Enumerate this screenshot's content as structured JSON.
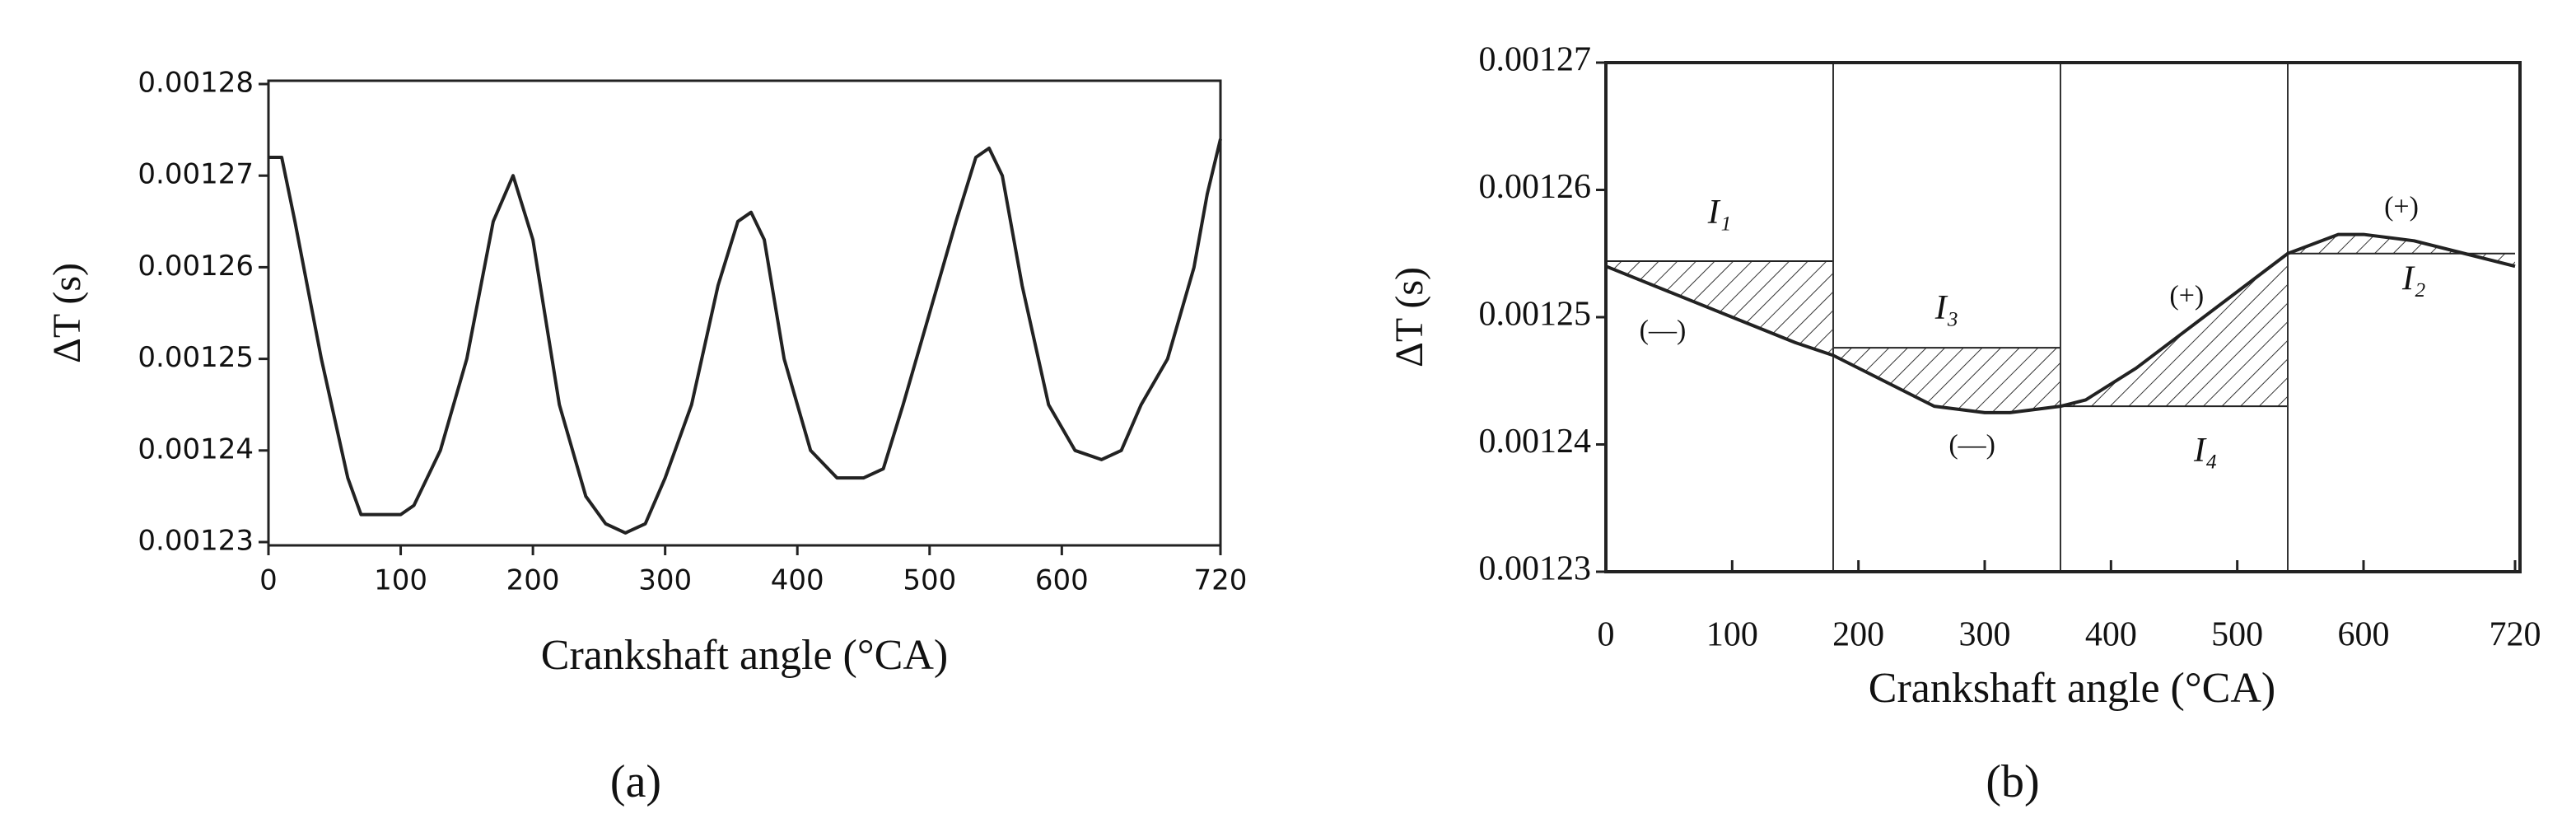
{
  "chart_data": [
    {
      "type": "line",
      "caption": "(a)",
      "x_label": "Crankshaft angle (°CA)",
      "y_label": "ΔT (s)",
      "xlim": [
        0,
        720
      ],
      "xticks": [
        0,
        100,
        200,
        300,
        400,
        500,
        600,
        720
      ],
      "ylim": [
        0.00123,
        0.00128
      ],
      "yticks": [
        0.00123,
        0.00124,
        0.00125,
        0.00126,
        0.00127,
        0.00128
      ],
      "series": [
        {
          "name": "ΔT",
          "color": "#222222",
          "x": [
            0,
            10,
            20,
            40,
            60,
            70,
            80,
            100,
            110,
            130,
            150,
            170,
            185,
            200,
            220,
            240,
            255,
            270,
            285,
            300,
            320,
            340,
            355,
            365,
            375,
            390,
            410,
            430,
            450,
            465,
            480,
            500,
            520,
            535,
            545,
            555,
            570,
            590,
            610,
            630,
            645,
            660,
            680,
            700,
            710,
            720
          ],
          "values": [
            0.001272,
            0.001272,
            0.001265,
            0.00125,
            0.001237,
            0.001233,
            0.001233,
            0.001233,
            0.001234,
            0.00124,
            0.00125,
            0.001265,
            0.00127,
            0.001263,
            0.001245,
            0.001235,
            0.001232,
            0.001231,
            0.001232,
            0.001237,
            0.001245,
            0.001258,
            0.001265,
            0.001266,
            0.001263,
            0.00125,
            0.00124,
            0.001237,
            0.001237,
            0.001238,
            0.001245,
            0.001255,
            0.001265,
            0.001272,
            0.001273,
            0.00127,
            0.001258,
            0.001245,
            0.00124,
            0.001239,
            0.00124,
            0.001245,
            0.00125,
            0.00126,
            0.001268,
            0.001274
          ]
        }
      ]
    },
    {
      "type": "line",
      "caption": "(b)",
      "x_label": "Crankshaft angle (°CA)",
      "y_label": "ΔT (s)",
      "xlim": [
        0,
        720
      ],
      "xticks": [
        0,
        100,
        200,
        300,
        400,
        500,
        600,
        720
      ],
      "ylim": [
        0.00123,
        0.00127
      ],
      "yticks": [
        0.00123,
        0.00124,
        0.00125,
        0.00126,
        0.00127
      ],
      "dividers": [
        180,
        360,
        540
      ],
      "levels": [
        {
          "from": 0,
          "to": 180,
          "value": 0.0012544
        },
        {
          "from": 180,
          "to": 360,
          "value": 0.0012476
        },
        {
          "from": 360,
          "to": 540,
          "value": 0.001243
        },
        {
          "from": 540,
          "to": 720,
          "value": 0.001255
        }
      ],
      "annotations": [
        "I₁",
        "(—)",
        "I₃",
        "(—)",
        "(+)",
        "I₄",
        "(+)",
        "I₂"
      ],
      "series": [
        {
          "name": "ΔT",
          "color": "#222222",
          "x": [
            0,
            50,
            100,
            150,
            180,
            220,
            260,
            300,
            320,
            360,
            380,
            420,
            460,
            500,
            540,
            580,
            600,
            640,
            680,
            720
          ],
          "values": [
            0.001254,
            0.001252,
            0.00125,
            0.001248,
            0.001247,
            0.001245,
            0.001243,
            0.0012425,
            0.0012425,
            0.001243,
            0.0012435,
            0.001246,
            0.001249,
            0.001252,
            0.001255,
            0.0012565,
            0.0012565,
            0.001256,
            0.001255,
            0.001254
          ]
        }
      ]
    }
  ]
}
